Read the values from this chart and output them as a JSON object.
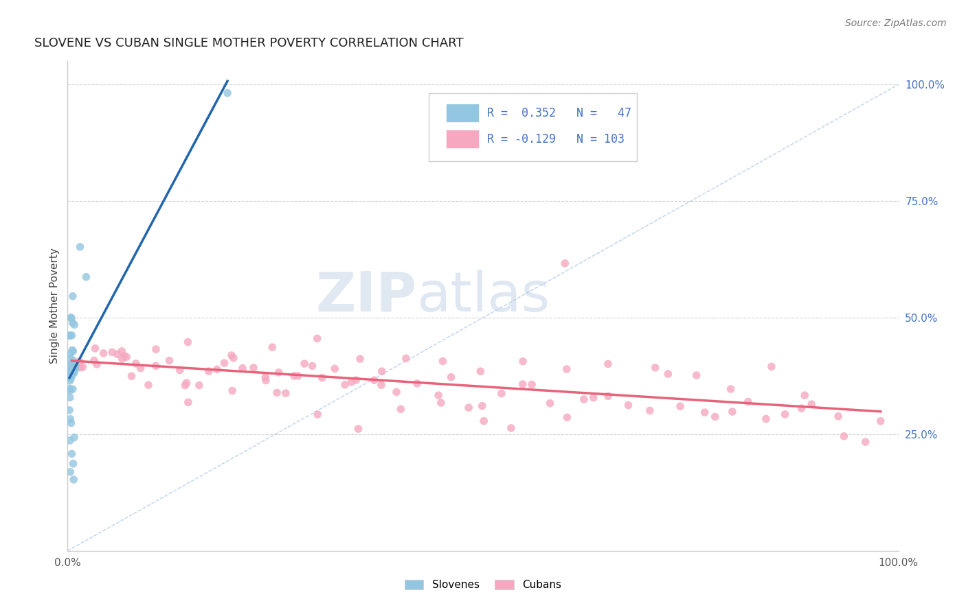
{
  "title": "SLOVENE VS CUBAN SINGLE MOTHER POVERTY CORRELATION CHART",
  "source": "Source: ZipAtlas.com",
  "ylabel": "Single Mother Poverty",
  "xlim": [
    0,
    1
  ],
  "ylim": [
    0,
    1.05
  ],
  "right_yticks": [
    0.25,
    0.5,
    0.75,
    1.0
  ],
  "right_yticklabels": [
    "25.0%",
    "50.0%",
    "75.0%",
    "100.0%"
  ],
  "slovene_R": 0.352,
  "slovene_N": 47,
  "cuban_R": -0.129,
  "cuban_N": 103,
  "slovene_color": "#93c6e0",
  "cuban_color": "#f5a8c0",
  "slovene_line_color": "#2166ac",
  "cuban_line_color": "#e8637a",
  "background_color": "#ffffff",
  "slovene_x": [
    0.005,
    0.008,
    0.003,
    0.006,
    0.004,
    0.007,
    0.005,
    0.006,
    0.008,
    0.009,
    0.004,
    0.003,
    0.006,
    0.005,
    0.007,
    0.003,
    0.004,
    0.005,
    0.006,
    0.003,
    0.004,
    0.005,
    0.006,
    0.007,
    0.004,
    0.003,
    0.005,
    0.006,
    0.004,
    0.007,
    0.003,
    0.005,
    0.006,
    0.004,
    0.007,
    0.003,
    0.005,
    0.006,
    0.004,
    0.007,
    0.003,
    0.005,
    0.006,
    0.004,
    0.022,
    0.015,
    0.19
  ],
  "slovene_y": [
    0.38,
    0.39,
    0.4,
    0.41,
    0.38,
    0.37,
    0.42,
    0.43,
    0.38,
    0.39,
    0.36,
    0.35,
    0.37,
    0.38,
    0.39,
    0.34,
    0.36,
    0.37,
    0.4,
    0.38,
    0.39,
    0.44,
    0.46,
    0.48,
    0.47,
    0.45,
    0.5,
    0.52,
    0.49,
    0.55,
    0.33,
    0.31,
    0.29,
    0.27,
    0.25,
    0.22,
    0.2,
    0.19,
    0.18,
    0.16,
    0.36,
    0.37,
    0.38,
    0.39,
    0.6,
    0.65,
    0.97
  ],
  "cuban_x": [
    0.005,
    0.01,
    0.02,
    0.025,
    0.03,
    0.035,
    0.04,
    0.045,
    0.05,
    0.055,
    0.06,
    0.065,
    0.07,
    0.075,
    0.08,
    0.085,
    0.09,
    0.1,
    0.11,
    0.12,
    0.13,
    0.14,
    0.15,
    0.16,
    0.17,
    0.18,
    0.19,
    0.2,
    0.21,
    0.22,
    0.23,
    0.24,
    0.25,
    0.26,
    0.27,
    0.28,
    0.29,
    0.3,
    0.31,
    0.32,
    0.33,
    0.34,
    0.35,
    0.36,
    0.37,
    0.38,
    0.4,
    0.42,
    0.44,
    0.46,
    0.48,
    0.5,
    0.52,
    0.54,
    0.56,
    0.58,
    0.6,
    0.62,
    0.64,
    0.66,
    0.68,
    0.7,
    0.72,
    0.74,
    0.76,
    0.78,
    0.8,
    0.82,
    0.84,
    0.86,
    0.88,
    0.9,
    0.92,
    0.94,
    0.96,
    0.98,
    0.15,
    0.2,
    0.25,
    0.3,
    0.35,
    0.4,
    0.45,
    0.5,
    0.55,
    0.6,
    0.65,
    0.7,
    0.75,
    0.8,
    0.85,
    0.9,
    0.1,
    0.15,
    0.2,
    0.25,
    0.3,
    0.35,
    0.4,
    0.45,
    0.5,
    0.55,
    0.6
  ],
  "cuban_y": [
    0.39,
    0.4,
    0.41,
    0.38,
    0.42,
    0.39,
    0.41,
    0.4,
    0.43,
    0.42,
    0.44,
    0.43,
    0.41,
    0.4,
    0.39,
    0.38,
    0.42,
    0.41,
    0.4,
    0.39,
    0.38,
    0.37,
    0.36,
    0.38,
    0.4,
    0.39,
    0.41,
    0.4,
    0.42,
    0.41,
    0.4,
    0.39,
    0.38,
    0.37,
    0.36,
    0.38,
    0.4,
    0.39,
    0.38,
    0.37,
    0.36,
    0.35,
    0.37,
    0.36,
    0.35,
    0.38,
    0.36,
    0.35,
    0.34,
    0.36,
    0.35,
    0.34,
    0.33,
    0.32,
    0.34,
    0.33,
    0.32,
    0.31,
    0.33,
    0.32,
    0.31,
    0.3,
    0.32,
    0.31,
    0.3,
    0.29,
    0.31,
    0.3,
    0.29,
    0.28,
    0.3,
    0.29,
    0.28,
    0.27,
    0.26,
    0.25,
    0.46,
    0.44,
    0.45,
    0.43,
    0.44,
    0.43,
    0.42,
    0.41,
    0.43,
    0.42,
    0.41,
    0.4,
    0.39,
    0.38,
    0.37,
    0.36,
    0.35,
    0.34,
    0.33,
    0.32,
    0.31,
    0.3,
    0.29,
    0.28,
    0.27,
    0.26,
    0.6
  ]
}
